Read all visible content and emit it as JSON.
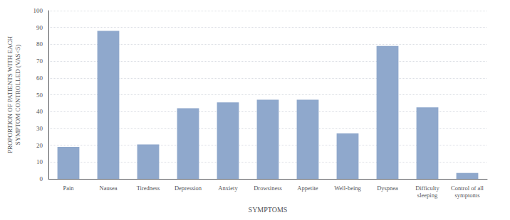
{
  "chart_data": {
    "type": "bar",
    "categories": [
      "Pain",
      "Nausea",
      "Tiredness",
      "Depression",
      "Anxiety",
      "Drowsiness",
      "Appetite",
      "Well-being",
      "Dyspnea",
      "Difficulty\nsleeping",
      "Control of all\nsymptoms"
    ],
    "values": [
      19,
      88,
      20.5,
      42,
      45.5,
      47,
      47,
      27,
      79,
      42.5,
      3.5
    ],
    "color": "#8fa8cc",
    "xlabel": "SYMPTOMS",
    "ylabel": "PROPORTION OF PATIENTS WITH EACH\nSYMPTOM CONTROLLED (VAS<5)",
    "ylim": [
      0,
      100
    ],
    "yticks": [
      0,
      10,
      20,
      30,
      40,
      50,
      60,
      70,
      80,
      90,
      100
    ],
    "grid": true
  }
}
